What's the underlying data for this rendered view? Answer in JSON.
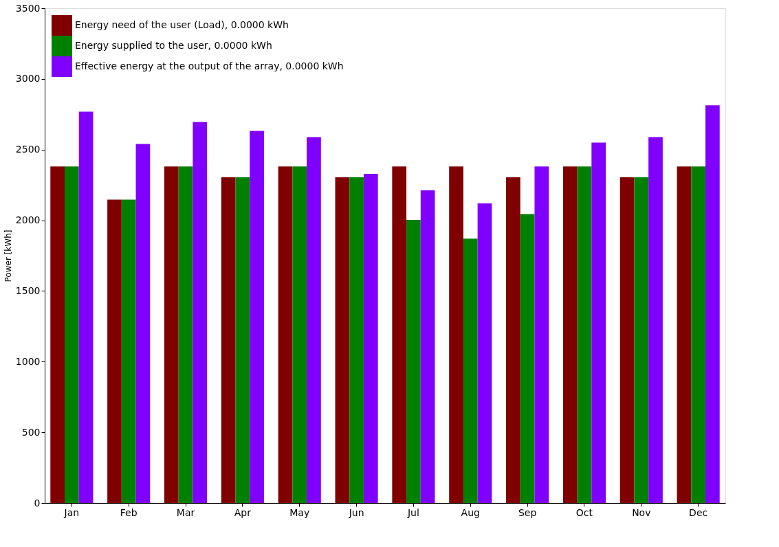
{
  "chart_data": {
    "type": "bar",
    "ylabel": "Power [kWh]",
    "categories": [
      "Jan",
      "Feb",
      "Mar",
      "Apr",
      "May",
      "Jun",
      "Jul",
      "Aug",
      "Sep",
      "Oct",
      "Nov",
      "Dec"
    ],
    "series": [
      {
        "name": "Energy need of the user (Load),  0.0000 kWh",
        "color": "#800000",
        "values": [
          2381,
          2146,
          2381,
          2304,
          2381,
          2304,
          2381,
          2381,
          2304,
          2381,
          2304,
          2381
        ]
      },
      {
        "name": "Energy supplied to the user,  0.0000 kWh",
        "color": "#008000",
        "values": [
          2381,
          2146,
          2381,
          2304,
          2381,
          2304,
          2003,
          1870,
          2044,
          2381,
          2304,
          2381
        ]
      },
      {
        "name": "Effective energy at the output of the array,  0.0000 kWh",
        "color": "#8000ff",
        "values": [
          2768,
          2540,
          2696,
          2632,
          2589,
          2328,
          2212,
          2119,
          2381,
          2550,
          2588,
          2813
        ]
      }
    ],
    "ylim": [
      0,
      3500
    ],
    "yticks": [
      0,
      500,
      1000,
      1500,
      2000,
      2500,
      3000,
      3500
    ],
    "grid": false,
    "legend": "top left"
  }
}
